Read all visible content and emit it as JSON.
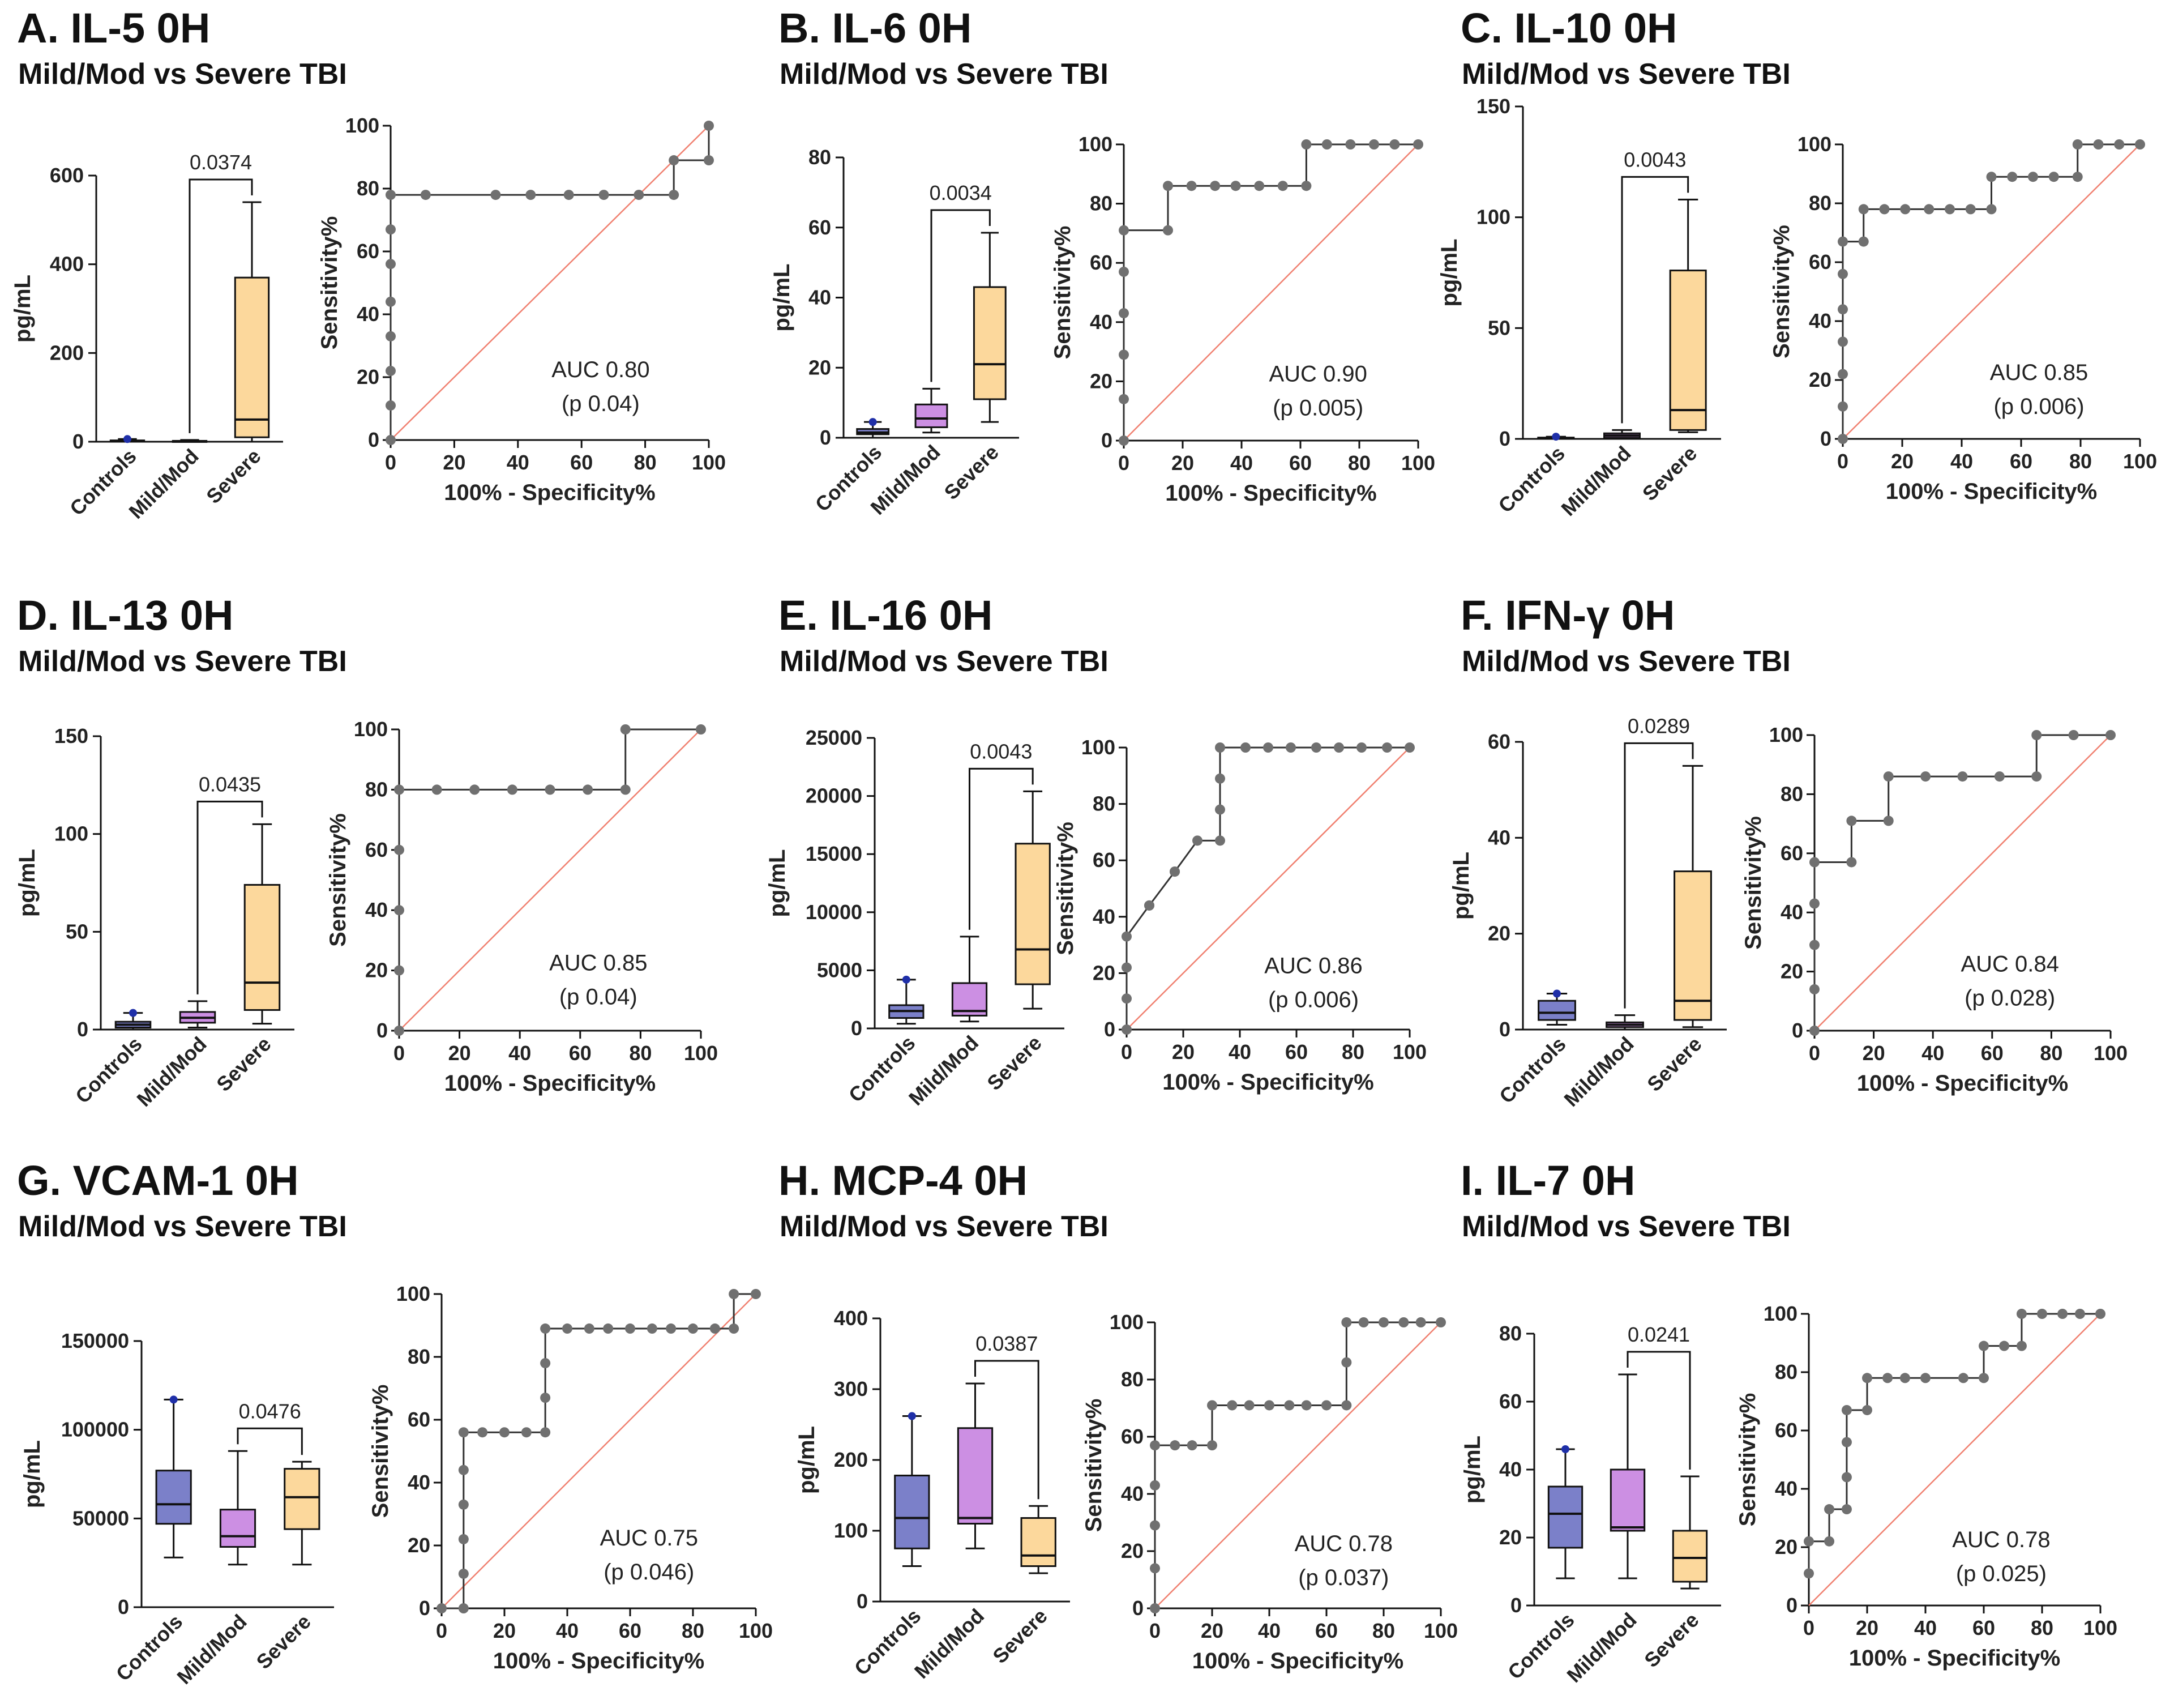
{
  "colors": {
    "controls": "#7B80C9",
    "mildmod": "#CC8FE3",
    "severe": "#FCD89C",
    "roc_point": "#707070",
    "diagonal": "#F08070",
    "whisker_dot": "#1F2FA8"
  },
  "common": {
    "subtitle": "Mild/Mod vs Severe TBI",
    "box_ylabel": "pg/mL",
    "box_categories": [
      "Controls",
      "Mild/Mod",
      "Severe"
    ],
    "roc_xlabel": "100% - Specificity%",
    "roc_ylabel": "Sensitivity%",
    "roc_ticks": [
      0,
      20,
      40,
      60,
      80,
      100
    ]
  },
  "chart_data": [
    {
      "panel": "A",
      "title": "A. IL-5 0H",
      "type": "box+roc",
      "box": {
        "ylim": [
          0,
          600
        ],
        "yticks": [
          0,
          200,
          400,
          600
        ],
        "groups": [
          {
            "name": "Controls",
            "min": 0,
            "q1": 0,
            "median": 1,
            "q3": 3,
            "max": 6
          },
          {
            "name": "Mild/Mod",
            "min": 0,
            "q1": 0,
            "median": 1,
            "q3": 2,
            "max": 4
          },
          {
            "name": "Severe",
            "min": 0,
            "q1": 10,
            "median": 50,
            "q3": 370,
            "max": 540
          }
        ],
        "bracket": {
          "from": "Mild/Mod",
          "to": "Severe",
          "label": "0.0374"
        }
      },
      "roc": {
        "auc_label": "AUC 0.80",
        "p_label": "(p 0.04)",
        "x": [
          0,
          0,
          0,
          0,
          0,
          0,
          0,
          0,
          11,
          33,
          44,
          56,
          67,
          78,
          89,
          89,
          100,
          100
        ],
        "y": [
          0,
          11,
          22,
          33,
          44,
          56,
          67,
          78,
          78,
          78,
          78,
          78,
          78,
          78,
          78,
          89,
          89,
          100
        ]
      }
    },
    {
      "panel": "B",
      "title": "B. IL-6 0H",
      "type": "box+roc",
      "box": {
        "ylim": [
          0,
          80
        ],
        "yticks": [
          0,
          20,
          40,
          60,
          80
        ],
        "groups": [
          {
            "name": "Controls",
            "min": 0,
            "q1": 1,
            "median": 1.5,
            "q3": 2.5,
            "max": 4.5
          },
          {
            "name": "Mild/Mod",
            "min": 1.5,
            "q1": 3,
            "median": 5.5,
            "q3": 9.5,
            "max": 14
          },
          {
            "name": "Severe",
            "min": 4.5,
            "q1": 11,
            "median": 21,
            "q3": 43,
            "max": 58.5
          }
        ],
        "bracket": {
          "from": "Mild/Mod",
          "to": "Severe",
          "label": "0.0034"
        }
      },
      "roc": {
        "auc_label": "AUC 0.90",
        "p_label": "(p 0.005)",
        "x": [
          0,
          0,
          0,
          0,
          0,
          0,
          15,
          15,
          23,
          31,
          38,
          46,
          54,
          62,
          62,
          69,
          77,
          85,
          92,
          100
        ],
        "y": [
          0,
          14,
          29,
          43,
          57,
          71,
          71,
          86,
          86,
          86,
          86,
          86,
          86,
          86,
          100,
          100,
          100,
          100,
          100,
          100
        ]
      }
    },
    {
      "panel": "C",
      "title": "C. IL-10 0H",
      "type": "box+roc",
      "box": {
        "ylim": [
          0,
          150
        ],
        "yticks": [
          0,
          50,
          100,
          150
        ],
        "groups": [
          {
            "name": "Controls",
            "min": 0,
            "q1": 0,
            "median": 0.3,
            "q3": 0.6,
            "max": 1
          },
          {
            "name": "Mild/Mod",
            "min": 0,
            "q1": 0.5,
            "median": 1.5,
            "q3": 2.5,
            "max": 4
          },
          {
            "name": "Severe",
            "min": 3,
            "q1": 4,
            "median": 13,
            "q3": 76,
            "max": 108
          }
        ],
        "bracket": {
          "from": "Mild/Mod",
          "to": "Severe",
          "label": "0.0043"
        }
      },
      "roc": {
        "auc_label": "AUC 0.85",
        "p_label": "(p 0.006)",
        "x": [
          0,
          0,
          0,
          0,
          0,
          0,
          0,
          7,
          7,
          14,
          21,
          29,
          36,
          43,
          50,
          50,
          57,
          64,
          71,
          79,
          79,
          86,
          93,
          100
        ],
        "y": [
          0,
          11,
          22,
          33,
          44,
          56,
          67,
          67,
          78,
          78,
          78,
          78,
          78,
          78,
          78,
          89,
          89,
          89,
          89,
          89,
          100,
          100,
          100,
          100
        ]
      }
    },
    {
      "panel": "D",
      "title": "D. IL-13 0H",
      "type": "box+roc",
      "box": {
        "ylim": [
          0,
          150
        ],
        "yticks": [
          0,
          50,
          100,
          150
        ],
        "groups": [
          {
            "name": "Controls",
            "min": 0,
            "q1": 1,
            "median": 2.5,
            "q3": 4,
            "max": 8.5
          },
          {
            "name": "Mild/Mod",
            "min": 1,
            "q1": 3.5,
            "median": 6,
            "q3": 9,
            "max": 14.5
          },
          {
            "name": "Severe",
            "min": 3,
            "q1": 10,
            "median": 24,
            "q3": 74,
            "max": 105
          }
        ],
        "bracket": {
          "from": "Mild/Mod",
          "to": "Severe",
          "label": "0.0435"
        }
      },
      "roc": {
        "auc_label": "AUC 0.85",
        "p_label": "(p 0.04)",
        "x": [
          0,
          0,
          0,
          0,
          0,
          12.5,
          25,
          37.5,
          50,
          62.5,
          75,
          75,
          100
        ],
        "y": [
          0,
          20,
          40,
          60,
          80,
          80,
          80,
          80,
          80,
          80,
          80,
          100,
          100
        ]
      }
    },
    {
      "panel": "E",
      "title": "E. IL-16 0H",
      "type": "box+roc",
      "box": {
        "ylim": [
          0,
          25000
        ],
        "yticks": [
          0,
          5000,
          10000,
          15000,
          20000,
          25000
        ],
        "groups": [
          {
            "name": "Controls",
            "min": 400,
            "q1": 900,
            "median": 1500,
            "q3": 2000,
            "max": 4200
          },
          {
            "name": "Mild/Mod",
            "min": 600,
            "q1": 1100,
            "median": 1500,
            "q3": 3900,
            "max": 7900
          },
          {
            "name": "Severe",
            "min": 1700,
            "q1": 3800,
            "median": 6800,
            "q3": 15900,
            "max": 20400
          }
        ],
        "bracket": {
          "from": "Mild/Mod",
          "to": "Severe",
          "label": "0.0043"
        }
      },
      "roc": {
        "auc_label": "AUC 0.86",
        "p_label": "(p 0.006)",
        "x": [
          0,
          0,
          0,
          0,
          8,
          8,
          17,
          17,
          25,
          33,
          33,
          33,
          33,
          42,
          50,
          58,
          67,
          75,
          83,
          92,
          100
        ],
        "y": [
          0,
          11,
          22,
          33,
          44,
          44,
          56,
          56,
          67,
          67,
          78,
          89,
          100,
          100,
          100,
          100,
          100,
          100,
          100,
          100,
          100
        ]
      }
    },
    {
      "panel": "F",
      "title": "F. IFN-γ 0H",
      "type": "box+roc",
      "box": {
        "ylim": [
          0,
          60
        ],
        "yticks": [
          0,
          20,
          40,
          60
        ],
        "groups": [
          {
            "name": "Controls",
            "min": 1,
            "q1": 2,
            "median": 3.5,
            "q3": 6,
            "max": 7.5
          },
          {
            "name": "Mild/Mod",
            "min": 0,
            "q1": 0.5,
            "median": 1,
            "q3": 1.5,
            "max": 3
          },
          {
            "name": "Severe",
            "min": 0.5,
            "q1": 2,
            "median": 6,
            "q3": 33,
            "max": 55
          }
        ],
        "bracket": {
          "from": "Mild/Mod",
          "to": "Severe",
          "label": "0.0289"
        }
      },
      "roc": {
        "auc_label": "AUC 0.84",
        "p_label": "(p 0.028)",
        "x": [
          0,
          0,
          0,
          0,
          0,
          12.5,
          12.5,
          25,
          25,
          37.5,
          50,
          62.5,
          75,
          75,
          87.5,
          100
        ],
        "y": [
          0,
          14,
          29,
          43,
          57,
          57,
          71,
          71,
          86,
          86,
          86,
          86,
          86,
          100,
          100,
          100
        ]
      }
    },
    {
      "panel": "G",
      "title": "G. VCAM-1 0H",
      "type": "box+roc",
      "box": {
        "ylim": [
          0,
          150000
        ],
        "yticks": [
          0,
          50000,
          100000,
          150000
        ],
        "groups": [
          {
            "name": "Controls",
            "min": 28000,
            "q1": 47000,
            "median": 58000,
            "q3": 77000,
            "max": 117000
          },
          {
            "name": "Mild/Mod",
            "min": 24000,
            "q1": 34000,
            "median": 40000,
            "q3": 55000,
            "max": 88000
          },
          {
            "name": "Severe",
            "min": 24000,
            "q1": 44000,
            "median": 62000,
            "q3": 78000,
            "max": 82000
          }
        ],
        "bracket": {
          "from": "Mild/Mod",
          "to": "Severe",
          "label": "0.0476"
        }
      },
      "roc": {
        "auc_label": "AUC 0.75",
        "p_label": "(p 0.046)",
        "x": [
          0,
          7,
          7,
          7,
          7,
          7,
          7,
          13,
          20,
          27,
          33,
          33,
          33,
          33,
          40,
          47,
          53,
          60,
          67,
          73,
          80,
          87,
          93,
          93,
          100
        ],
        "y": [
          0,
          0,
          11,
          22,
          33,
          44,
          56,
          56,
          56,
          56,
          56,
          67,
          78,
          89,
          89,
          89,
          89,
          89,
          89,
          89,
          89,
          89,
          89,
          100,
          100
        ]
      }
    },
    {
      "panel": "H",
      "title": "H. MCP-4 0H",
      "type": "box+roc",
      "box": {
        "ylim": [
          0,
          400
        ],
        "yticks": [
          0,
          100,
          200,
          300,
          400
        ],
        "groups": [
          {
            "name": "Controls",
            "min": 50,
            "q1": 75,
            "median": 118,
            "q3": 178,
            "max": 262
          },
          {
            "name": "Mild/Mod",
            "min": 75,
            "q1": 110,
            "median": 118,
            "q3": 245,
            "max": 308
          },
          {
            "name": "Severe",
            "min": 40,
            "q1": 50,
            "median": 65,
            "q3": 118,
            "max": 135
          }
        ],
        "bracket": {
          "from": "Mild/Mod",
          "to": "Severe",
          "label": "0.0387"
        }
      },
      "roc": {
        "auc_label": "AUC 0.78",
        "p_label": "(p 0.037)",
        "x": [
          0,
          0,
          0,
          0,
          0,
          7,
          13,
          20,
          20,
          27,
          33,
          40,
          47,
          53,
          60,
          67,
          67,
          67,
          73,
          80,
          87,
          93,
          100
        ],
        "y": [
          0,
          14,
          29,
          43,
          57,
          57,
          57,
          57,
          71,
          71,
          71,
          71,
          71,
          71,
          71,
          71,
          86,
          100,
          100,
          100,
          100,
          100,
          100
        ]
      }
    },
    {
      "panel": "I",
      "title": "I. IL-7 0H",
      "type": "box+roc",
      "box": {
        "ylim": [
          0,
          80
        ],
        "yticks": [
          0,
          20,
          40,
          60,
          80
        ],
        "groups": [
          {
            "name": "Controls",
            "min": 8,
            "q1": 17,
            "median": 27,
            "q3": 35,
            "max": 46
          },
          {
            "name": "Mild/Mod",
            "min": 8,
            "q1": 22,
            "median": 23,
            "q3": 40,
            "max": 68
          },
          {
            "name": "Severe",
            "min": 5,
            "q1": 7,
            "median": 14,
            "q3": 22,
            "max": 38
          }
        ],
        "bracket": {
          "from": "Mild/Mod",
          "to": "Severe",
          "label": "0.0241"
        }
      },
      "roc": {
        "auc_label": "AUC 0.78",
        "p_label": "(p 0.025)",
        "x": [
          0,
          0,
          7,
          7,
          13,
          13,
          13,
          13,
          20,
          20,
          27,
          33,
          40,
          53,
          60,
          60,
          67,
          73,
          73,
          80,
          87,
          93,
          100
        ],
        "y": [
          11,
          22,
          22,
          33,
          33,
          44,
          56,
          67,
          67,
          78,
          78,
          78,
          78,
          78,
          78,
          89,
          89,
          89,
          100,
          100,
          100,
          100,
          100
        ]
      }
    }
  ]
}
